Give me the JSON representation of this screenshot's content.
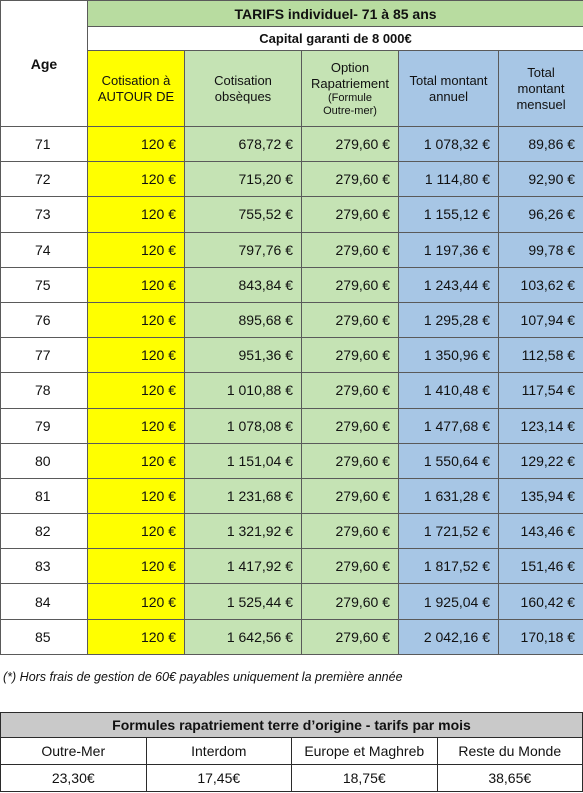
{
  "main": {
    "title": "TARIFS individuel- 71 à 85 ans",
    "capital": "Capital garanti de 8 000€",
    "headers": {
      "age": "Age",
      "cotisation_line1": "Cotisation à",
      "cotisation_line2": "AUTOUR DE",
      "obseques_line1": "Cotisation",
      "obseques_line2": "obsèques",
      "option_line1": "Option",
      "option_line2": "Rapatriement",
      "option_line3": "(Formule",
      "option_line4": "Outre-mer)",
      "annuel_line1": "Total montant",
      "annuel_line2": "annuel",
      "mensuel_line1": "Total",
      "mensuel_line2": "montant",
      "mensuel_line3": "mensuel"
    },
    "rows": [
      {
        "age": "71",
        "cotisation": "120 €",
        "obseques": "678,72 €",
        "option": "279,60 €",
        "annuel": "1 078,32 €",
        "mensuel": "89,86 €"
      },
      {
        "age": "72",
        "cotisation": "120 €",
        "obseques": "715,20 €",
        "option": "279,60 €",
        "annuel": "1 114,80 €",
        "mensuel": "92,90 €"
      },
      {
        "age": "73",
        "cotisation": "120 €",
        "obseques": "755,52 €",
        "option": "279,60 €",
        "annuel": "1 155,12 €",
        "mensuel": "96,26 €"
      },
      {
        "age": "74",
        "cotisation": "120 €",
        "obseques": "797,76 €",
        "option": "279,60 €",
        "annuel": "1 197,36 €",
        "mensuel": "99,78 €"
      },
      {
        "age": "75",
        "cotisation": "120 €",
        "obseques": "843,84 €",
        "option": "279,60 €",
        "annuel": "1 243,44 €",
        "mensuel": "103,62 €"
      },
      {
        "age": "76",
        "cotisation": "120 €",
        "obseques": "895,68 €",
        "option": "279,60 €",
        "annuel": "1 295,28 €",
        "mensuel": "107,94 €"
      },
      {
        "age": "77",
        "cotisation": "120 €",
        "obseques": "951,36 €",
        "option": "279,60 €",
        "annuel": "1 350,96 €",
        "mensuel": "112,58 €"
      },
      {
        "age": "78",
        "cotisation": "120 €",
        "obseques": "1 010,88 €",
        "option": "279,60 €",
        "annuel": "1 410,48 €",
        "mensuel": "117,54 €"
      },
      {
        "age": "79",
        "cotisation": "120 €",
        "obseques": "1 078,08 €",
        "option": "279,60 €",
        "annuel": "1 477,68 €",
        "mensuel": "123,14 €"
      },
      {
        "age": "80",
        "cotisation": "120 €",
        "obseques": "1 151,04 €",
        "option": "279,60 €",
        "annuel": "1 550,64 €",
        "mensuel": "129,22 €"
      },
      {
        "age": "81",
        "cotisation": "120 €",
        "obseques": "1 231,68 €",
        "option": "279,60 €",
        "annuel": "1 631,28 €",
        "mensuel": "135,94 €"
      },
      {
        "age": "82",
        "cotisation": "120 €",
        "obseques": "1 321,92 €",
        "option": "279,60 €",
        "annuel": "1 721,52 €",
        "mensuel": "143,46 €"
      },
      {
        "age": "83",
        "cotisation": "120 €",
        "obseques": "1 417,92 €",
        "option": "279,60 €",
        "annuel": "1 817,52 €",
        "mensuel": "151,46 €"
      },
      {
        "age": "84",
        "cotisation": "120 €",
        "obseques": "1 525,44 €",
        "option": "279,60 €",
        "annuel": "1 925,04 €",
        "mensuel": "160,42 €"
      },
      {
        "age": "85",
        "cotisation": "120 €",
        "obseques": "1 642,56 €",
        "option": "279,60 €",
        "annuel": "2 042,16 €",
        "mensuel": "170,18 €"
      }
    ]
  },
  "footnote": "(*) Hors frais de gestion de 60€ payables uniquement la première année",
  "formules": {
    "title": "Formules rapatriement terre d’origine - tarifs par mois",
    "columns": [
      {
        "name": "Outre-Mer",
        "price": "23,30€"
      },
      {
        "name": "Interdom",
        "price": "17,45€"
      },
      {
        "name": "Europe et Maghreb",
        "price": "18,75€"
      },
      {
        "name": "Reste du Monde",
        "price": "38,65€"
      }
    ]
  },
  "colors": {
    "header_green": "#b8dca0",
    "yellow": "#ffff00",
    "green": "#c5e3b4",
    "blue": "#a7c6e5",
    "formules_title_gray": "#c9c9c9"
  }
}
